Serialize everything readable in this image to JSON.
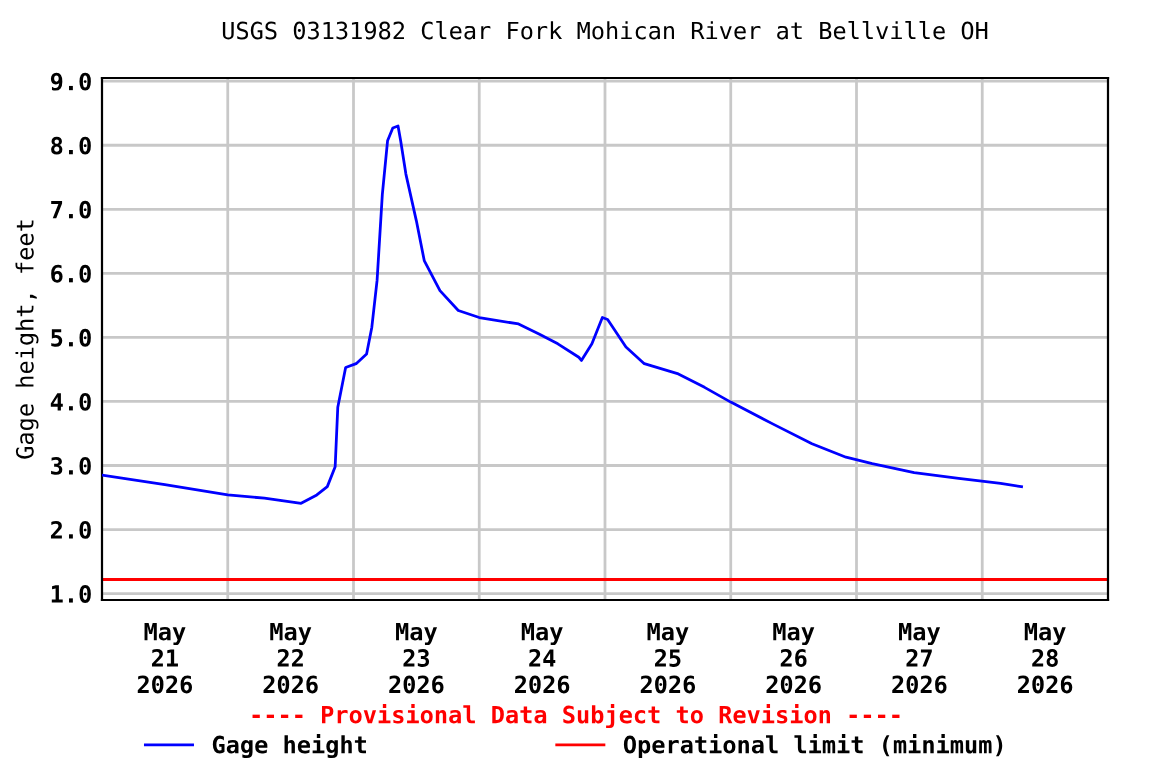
{
  "chart_data": {
    "type": "line",
    "title": "USGS 03131982 Clear Fork Mohican River at Bellville OH",
    "ylabel": "Gage height, feet",
    "x": [
      "2026-05-21T00:00",
      "2026-05-21T12:00",
      "2026-05-22T00:00",
      "2026-05-22T07:00",
      "2026-05-22T14:00",
      "2026-05-22T17:00",
      "2026-05-22T19:00",
      "2026-05-22T20:30",
      "2026-05-22T21:00",
      "2026-05-22T22:30",
      "2026-05-23T00:30",
      "2026-05-23T02:30",
      "2026-05-23T03:30",
      "2026-05-23T04:30",
      "2026-05-23T05:30",
      "2026-05-23T06:30",
      "2026-05-23T07:30",
      "2026-05-23T08:30",
      "2026-05-23T09:00",
      "2026-05-23T10:00",
      "2026-05-23T12:00",
      "2026-05-23T13:30",
      "2026-05-23T16:30",
      "2026-05-23T20:00",
      "2026-05-24T00:00",
      "2026-05-24T07:30",
      "2026-05-24T11:30",
      "2026-05-24T15:00",
      "2026-05-24T19:00",
      "2026-05-24T19:30",
      "2026-05-24T21:30",
      "2026-05-24T23:30",
      "2026-05-25T00:30",
      "2026-05-25T04:00",
      "2026-05-25T07:30",
      "2026-05-25T14:00",
      "2026-05-25T19:00",
      "2026-05-26T00:00",
      "2026-05-26T08:00",
      "2026-05-26T15:30",
      "2026-05-26T22:00",
      "2026-05-27T03:00",
      "2026-05-27T11:00",
      "2026-05-27T19:30",
      "2026-05-28T03:30",
      "2026-05-28T07:30"
    ],
    "series": [
      {
        "name": "Gage height",
        "color": "#0000ff",
        "values": [
          2.85,
          2.7,
          2.54,
          2.49,
          2.41,
          2.54,
          2.67,
          2.98,
          3.91,
          4.53,
          4.59,
          4.74,
          5.16,
          5.89,
          7.23,
          8.07,
          8.27,
          8.3,
          8.07,
          7.55,
          6.82,
          6.2,
          5.73,
          5.42,
          5.31,
          5.21,
          5.05,
          4.9,
          4.69,
          4.64,
          4.9,
          5.31,
          5.28,
          4.85,
          4.59,
          4.43,
          4.22,
          3.99,
          3.65,
          3.34,
          3.13,
          3.03,
          2.89,
          2.8,
          2.72,
          2.67
        ]
      }
    ],
    "ref_lines": [
      {
        "axis": "y",
        "value": 1.22,
        "label": "Operational limit (minimum)",
        "color": "#ff0000"
      }
    ],
    "xlim": [
      "2026-05-21T00:00",
      "2026-05-29T00:00"
    ],
    "xticks": [
      {
        "value": "2026-05-21T12:00",
        "label": "May\n21\n2026"
      },
      {
        "value": "2026-05-22T12:00",
        "label": "May\n22\n2026"
      },
      {
        "value": "2026-05-23T12:00",
        "label": "May\n23\n2026"
      },
      {
        "value": "2026-05-24T12:00",
        "label": "May\n24\n2026"
      },
      {
        "value": "2026-05-25T12:00",
        "label": "May\n25\n2026"
      },
      {
        "value": "2026-05-26T12:00",
        "label": "May\n26\n2026"
      },
      {
        "value": "2026-05-27T12:00",
        "label": "May\n27\n2026"
      },
      {
        "value": "2026-05-28T12:00",
        "label": "May\n28\n2026"
      },
      {
        "value": "2026-05-22T00:00",
        "label": null
      },
      {
        "value": "2026-05-23T00:00",
        "label": null
      },
      {
        "value": "2026-05-24T00:00",
        "label": null
      },
      {
        "value": "2026-05-25T00:00",
        "label": null
      },
      {
        "value": "2026-05-26T00:00",
        "label": null
      },
      {
        "value": "2026-05-27T00:00",
        "label": null
      },
      {
        "value": "2026-05-28T00:00",
        "label": null
      }
    ],
    "ylim": [
      0.9,
      9.05
    ],
    "yticks": [
      {
        "value": 1,
        "label": "1.0"
      },
      {
        "value": 2,
        "label": "2.0"
      },
      {
        "value": 3,
        "label": "3.0"
      },
      {
        "value": 4,
        "label": "4.0"
      },
      {
        "value": 5,
        "label": "5.0"
      },
      {
        "value": 6,
        "label": "6.0"
      },
      {
        "value": 7,
        "label": "7.0"
      },
      {
        "value": 8,
        "label": "8.0"
      },
      {
        "value": 9,
        "label": "9.0"
      }
    ],
    "grid": true,
    "legend": "bottom",
    "marker": "none",
    "line_style": "solid",
    "annotations": [
      "---- Provisional Data Subject to Revision ----"
    ]
  }
}
